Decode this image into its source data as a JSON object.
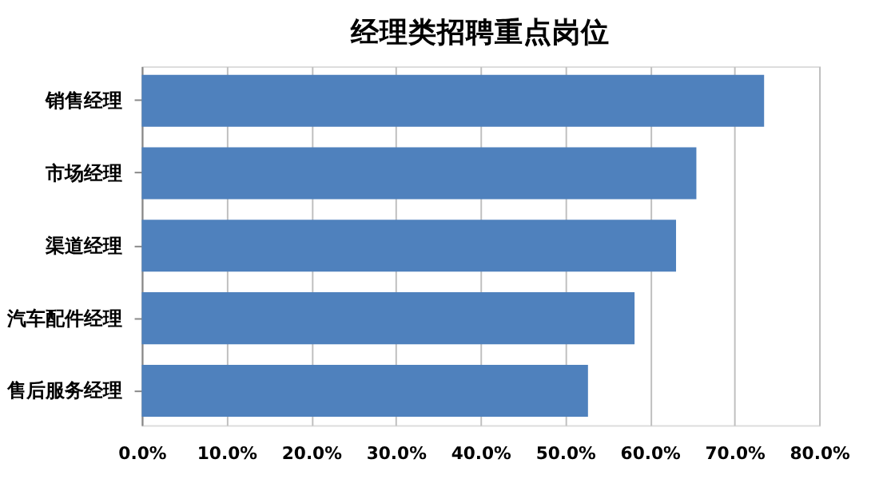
{
  "chart_data": {
    "type": "bar",
    "orientation": "horizontal",
    "title": "经理类招聘重点岗位",
    "categories": [
      "销售经理",
      "市场经理",
      "渠道经理",
      "汽车配件经理",
      "售后服务经理"
    ],
    "values": [
      73.5,
      65.5,
      63.1,
      58.2,
      52.7
    ],
    "color": "#4f81bd",
    "xlim": [
      0,
      80
    ],
    "xticks": [
      {
        "value": 0,
        "label": "0.0%"
      },
      {
        "value": 10,
        "label": "10.0%"
      },
      {
        "value": 20,
        "label": "20.0%"
      },
      {
        "value": 30,
        "label": "30.0%"
      },
      {
        "value": 40,
        "label": "40.0%"
      },
      {
        "value": 50,
        "label": "50.0%"
      },
      {
        "value": 60,
        "label": "60.0%"
      },
      {
        "value": 70,
        "label": "70.0%"
      },
      {
        "value": 80,
        "label": "80.0%"
      }
    ],
    "grid": "x"
  }
}
